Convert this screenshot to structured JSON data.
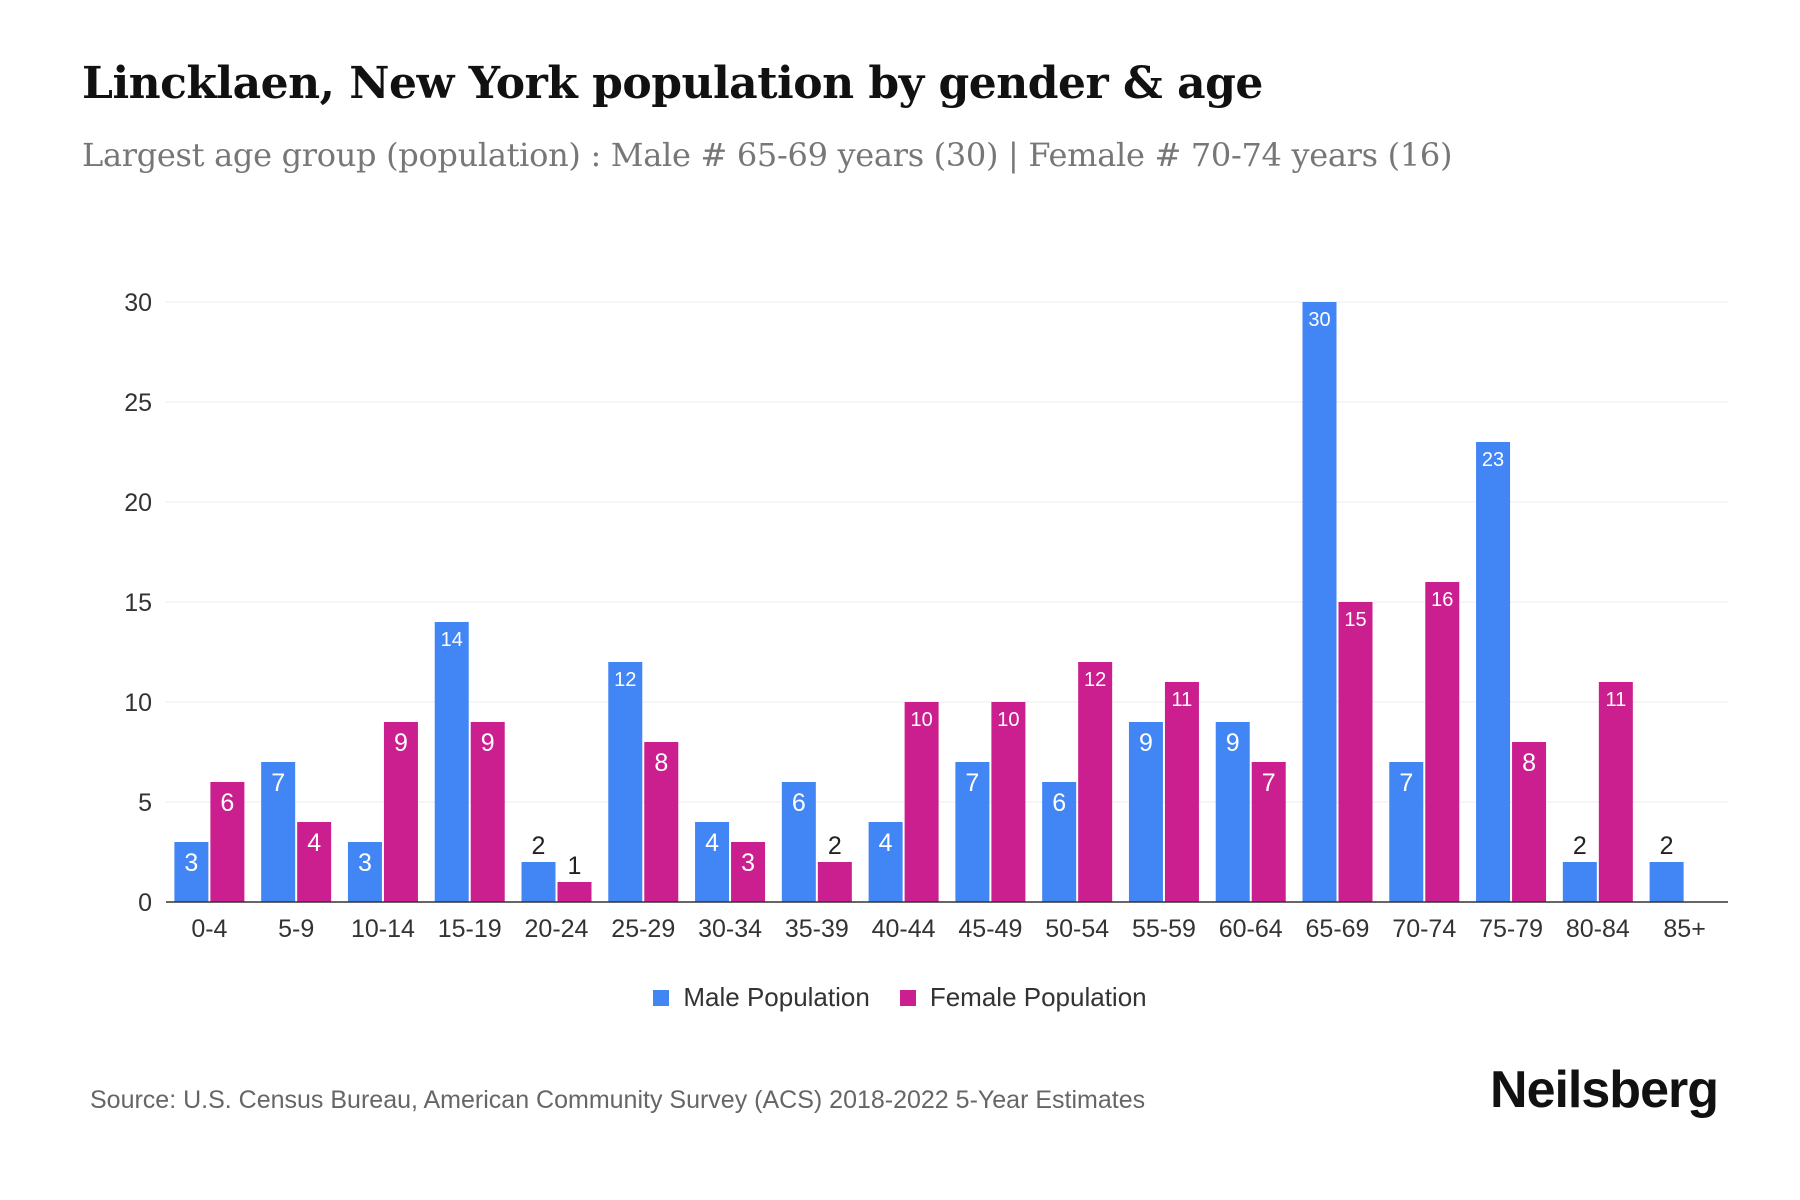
{
  "header": {
    "title": "Lincklaen, New York population by gender & age",
    "subtitle": "Largest age group (population) : Male # 65-69 years (30) | Female # 70-74 years (16)"
  },
  "chart_data": {
    "type": "bar",
    "title": "Lincklaen, New York population by gender & age",
    "xlabel": "",
    "ylabel": "",
    "ylim": [
      0,
      30
    ],
    "yticks": [
      "0",
      "5",
      "10",
      "15",
      "20",
      "25",
      "30"
    ],
    "grid": true,
    "legend_position": "bottom",
    "categories": [
      "0-4",
      "5-9",
      "10-14",
      "15-19",
      "20-24",
      "25-29",
      "30-34",
      "35-39",
      "40-44",
      "45-49",
      "50-54",
      "55-59",
      "60-64",
      "65-69",
      "70-74",
      "75-79",
      "80-84",
      "85+"
    ],
    "series": [
      {
        "name": "Male Population",
        "color": "#4285f4",
        "values": [
          3,
          7,
          3,
          14,
          2,
          12,
          4,
          6,
          4,
          7,
          6,
          9,
          9,
          30,
          7,
          23,
          2,
          2
        ]
      },
      {
        "name": "Female Population",
        "color": "#cc1f8f",
        "values": [
          6,
          4,
          9,
          9,
          1,
          8,
          3,
          2,
          10,
          10,
          12,
          11,
          7,
          15,
          16,
          8,
          11,
          null
        ]
      }
    ]
  },
  "footer": {
    "source": "Source: U.S. Census Bureau, American Community Survey (ACS) 2018-2022 5-Year Estimates",
    "logo": "Neilsberg"
  }
}
